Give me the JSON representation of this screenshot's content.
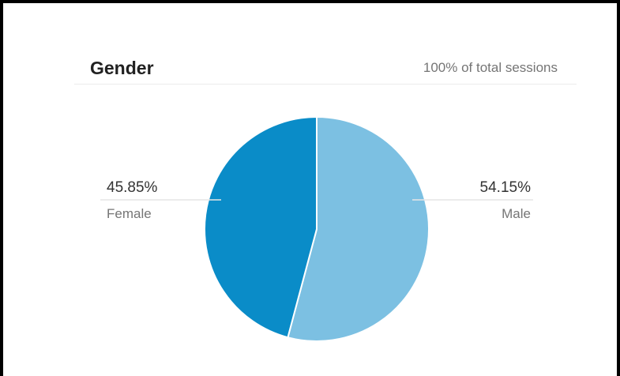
{
  "card": {
    "title": "Gender",
    "subtitle": "100% of total sessions"
  },
  "chart_data": {
    "type": "pie",
    "title": "Gender",
    "subtitle": "100% of total sessions",
    "categories": [
      "Male",
      "Female"
    ],
    "values": [
      54.15,
      45.85
    ],
    "value_labels": [
      "54.15%",
      "45.85%"
    ],
    "colors": [
      "#7cc0e2",
      "#0a8cc8"
    ],
    "start_angle": "12 o'clock, clockwise",
    "legend": "none"
  }
}
